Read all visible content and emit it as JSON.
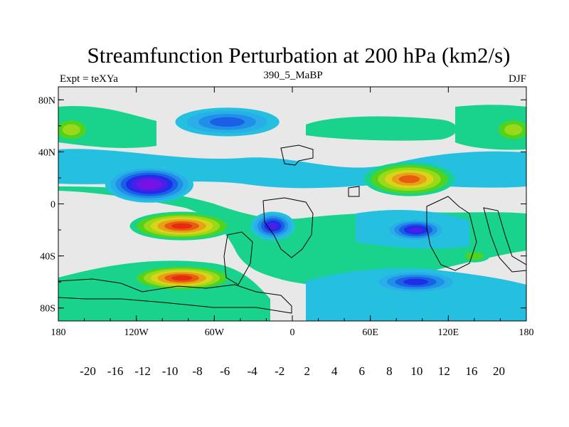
{
  "title": "Streamfunction Perturbation at 200 hPa (km2/s)",
  "left_string": "Expt = teXYa",
  "center_string": "390_5_MaBP",
  "right_string": "DJF",
  "x_ticks": [
    {
      "value": -180,
      "label": "180"
    },
    {
      "value": -120,
      "label": "120W"
    },
    {
      "value": -60,
      "label": "60W"
    },
    {
      "value": 0,
      "label": "0"
    },
    {
      "value": 60,
      "label": "60E"
    },
    {
      "value": 120,
      "label": "120E"
    },
    {
      "value": 180,
      "label": "180"
    }
  ],
  "y_ticks": [
    {
      "value": 80,
      "label": "80N"
    },
    {
      "value": 40,
      "label": "40N"
    },
    {
      "value": 0,
      "label": "0"
    },
    {
      "value": -40,
      "label": "40S"
    },
    {
      "value": -80,
      "label": "80S"
    }
  ],
  "colorbar": {
    "colors": [
      "#7b0fe6",
      "#6a18e6",
      "#4d1ee8",
      "#1e2ee8",
      "#1a5fe6",
      "#1f8fe8",
      "#2aaee8",
      "#25c0e0",
      "#e8e8e8",
      "#19d38d",
      "#4fd31f",
      "#9bd81a",
      "#d8d418",
      "#e8a018",
      "#e85c10",
      "#e82a0e",
      "#e00c0c"
    ],
    "levels": [
      "-20",
      "-16",
      "-12",
      "-10",
      "-8",
      "-6",
      "-4",
      "-2",
      "2",
      "4",
      "6",
      "8",
      "10",
      "12",
      "16",
      "20"
    ]
  },
  "map_extent": {
    "lon": [
      -180,
      180
    ],
    "lat": [
      -90,
      90
    ]
  },
  "field_features": [
    {
      "lon": -110,
      "lat": 15,
      "value": -22,
      "rx": 34,
      "ry": 14
    },
    {
      "lon": 90,
      "lat": 19,
      "value": 15,
      "rx": 35,
      "ry": 13
    },
    {
      "lon": -85,
      "lat": -17,
      "value": 16,
      "rx": 40,
      "ry": 11
    },
    {
      "lon": -85,
      "lat": -57,
      "value": 17,
      "rx": 40,
      "ry": 10
    },
    {
      "lon": -15,
      "lat": -17,
      "value": -13,
      "rx": 17,
      "ry": 11
    },
    {
      "lon": 95,
      "lat": -20,
      "value": -14,
      "rx": 24,
      "ry": 9
    },
    {
      "lon": 95,
      "lat": -60,
      "value": -10,
      "rx": 35,
      "ry": 9
    },
    {
      "lon": -50,
      "lat": 63,
      "value": -8,
      "rx": 40,
      "ry": 11
    },
    {
      "lon": -170,
      "lat": 57,
      "value": 7,
      "rx": 16,
      "ry": 10
    },
    {
      "lon": 170,
      "lat": 57,
      "value": 6,
      "rx": 16,
      "ry": 10
    },
    {
      "lon": 140,
      "lat": -40,
      "value": 4,
      "rx": 12,
      "ry": 5
    }
  ]
}
